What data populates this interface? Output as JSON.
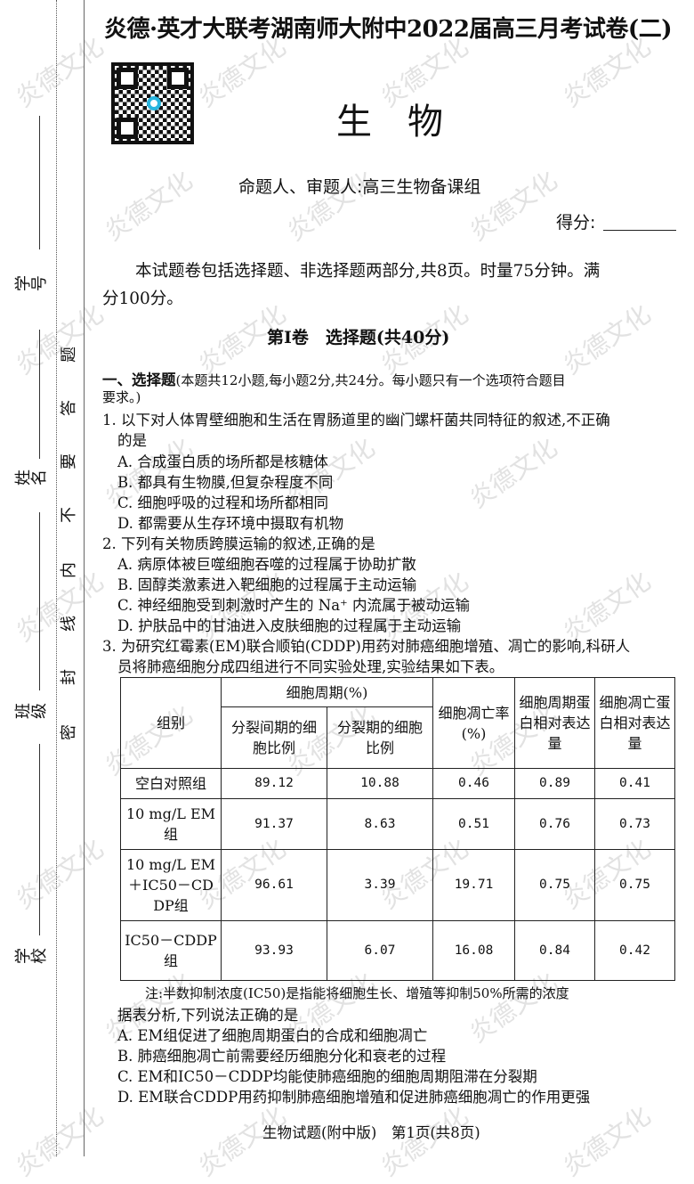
{
  "watermark": "炎德文化",
  "header": {
    "title": "炎德·英才大联考湖南师大附中2022届高三月考试卷(二)",
    "subject": "生　物",
    "authors": "命题人、审题人:高三生物备课组",
    "score_label": "得分:"
  },
  "margin": {
    "fields": [
      "学号",
      "姓名",
      "班级",
      "学校"
    ],
    "seal_text": [
      "密",
      "封",
      "线",
      "内",
      "不",
      "要",
      "答",
      "题"
    ]
  },
  "intro": {
    "line1": "本试题卷包括选择题、非选择题两部分,共8页。时量75分钟。满",
    "line2": "分100分。"
  },
  "part1_title": "第Ⅰ卷　选择题(共40分)",
  "section": {
    "heading": "一、选择题",
    "desc1": "(本题共12小题,每小题2分,共24分。每小题只有一个选项符合题目",
    "desc2": "要求。)"
  },
  "questions": [
    {
      "stem1": "1. 以下对人体胃壁细胞和生活在胃肠道里的幽门螺杆菌共同特征的叙述,不正确",
      "stem2": "的是",
      "options": [
        "A. 合成蛋白质的场所都是核糖体",
        "B. 都具有生物膜,但复杂程度不同",
        "C. 细胞呼吸的过程和场所都相同",
        "D. 都需要从生存环境中摄取有机物"
      ]
    },
    {
      "stem1": "2. 下列有关物质跨膜运输的叙述,正确的是",
      "options": [
        "A. 病原体被巨噬细胞吞噬的过程属于协助扩散",
        "B. 固醇类激素进入靶细胞的过程属于主动运输",
        "C. 神经细胞受到刺激时产生的 Na⁺ 内流属于被动运输",
        "D. 护肤品中的甘油进入皮肤细胞的过程属于主动运输"
      ]
    },
    {
      "stem1": "3. 为研究红霉素(EM)联合顺铂(CDDP)用药对肺癌细胞增殖、凋亡的影响,科研人",
      "stem2": "员将肺癌细胞分成四组进行不同实验处理,实验结果如下表。",
      "note": "注:半数抑制浓度(IC50)是指能将细胞生长、增殖等抑制50%所需的浓度",
      "ask": "据表分析,下列说法正确的是",
      "options": [
        "A. EM组促进了细胞周期蛋白的合成和细胞凋亡",
        "B. 肺癌细胞凋亡前需要经历细胞分化和衰老的过程",
        "C. EM和IC50－CDDP均能使肺癌细胞的细胞周期阻滞在分裂期",
        "D. EM联合CDDP用药抑制肺癌细胞增殖和促进肺癌细胞凋亡的作用更强"
      ]
    }
  ],
  "table": {
    "h_group": "组别",
    "h_cycle": "细胞周期(%)",
    "h_interphase": "分裂间期的细胞比例",
    "h_mitosis": "分裂期的细胞比例",
    "h_apoptosis": "细胞凋亡率(%)",
    "h_cycle_protein": "细胞周期蛋白相对表达量",
    "h_apop_protein": "细胞凋亡蛋白相对表达量",
    "rows": [
      {
        "group": "空白对照组",
        "v": [
          "89.12",
          "10.88",
          "0.46",
          "0.89",
          "0.41"
        ]
      },
      {
        "group": "10 mg/L EM组",
        "v": [
          "91.37",
          "8.63",
          "0.51",
          "0.76",
          "0.73"
        ]
      },
      {
        "group": "10 mg/L EM＋IC50－CDDP组",
        "v": [
          "96.61",
          "3.39",
          "19.71",
          "0.75",
          "0.75"
        ]
      },
      {
        "group": "IC50－CDDP组",
        "v": [
          "93.93",
          "6.07",
          "16.08",
          "0.84",
          "0.42"
        ]
      }
    ]
  },
  "footer": "生物试题(附中版)　第1页(共8页)"
}
